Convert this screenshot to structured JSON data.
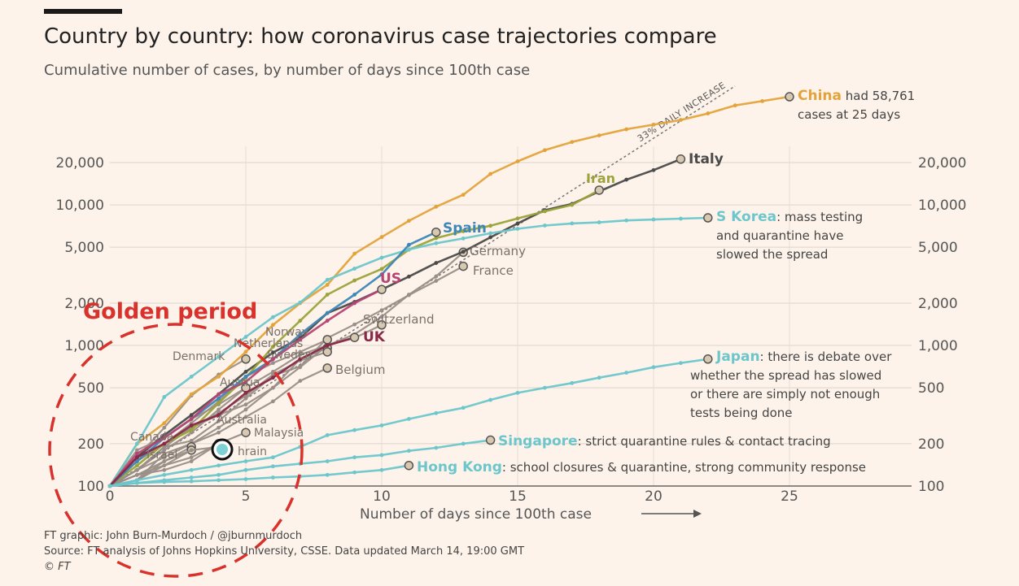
{
  "header": {
    "title": "Country by country: how coronavirus case trajectories compare",
    "subtitle": "Cumulative number of cases, by number of days since 100th case"
  },
  "footer": {
    "credit": "FT graphic: John Burn-Murdoch / @jburnmurdoch",
    "source": "Source: FT analysis of Johns Hopkins University, CSSE. Data updated March 14, 19:00 GMT",
    "copyright": "© FT"
  },
  "overlay": {
    "label": "Golden period",
    "color": "#d9312b"
  },
  "colors": {
    "china": "#e3a33b",
    "italy": "#4a4a4a",
    "iran": "#9ba33a",
    "skorea": "#6cc6cc",
    "spain": "#3d87b8",
    "us": "#b74573",
    "uk": "#8a2848",
    "grey": "#9a8f88",
    "japan": "#6cc6cc",
    "singapore": "#6cc6cc",
    "hongkong": "#6cc6cc"
  },
  "chart_data": {
    "type": "line",
    "title": "Country by country: how coronavirus case trajectories compare",
    "subtitle": "Cumulative number of cases, by number of days since 100th case",
    "xlabel": "Number of days since 100th case",
    "xlim": [
      0,
      30
    ],
    "ylim": [
      100,
      60000
    ],
    "yscale": "log",
    "xticks": [
      0,
      5,
      10,
      15,
      20,
      25
    ],
    "yticks": [
      100,
      200,
      500,
      1000,
      2000,
      5000,
      10000,
      20000
    ],
    "ytick_labels": [
      "100",
      "200",
      "500",
      "1,000",
      "2,000",
      "5,000",
      "10,000",
      "20,000"
    ],
    "grid": true,
    "reference_line": {
      "label": "33% DAILY INCREASE",
      "x": [
        0,
        23
      ],
      "y": [
        100,
        70000
      ]
    },
    "series": [
      {
        "name": "China",
        "label": "China",
        "note": "had 58,761",
        "note2": "cases at 25 days",
        "color_key": "china",
        "x": [
          0,
          1,
          2,
          3,
          4,
          5,
          6,
          7,
          8,
          9,
          10,
          11,
          12,
          13,
          14,
          15,
          16,
          17,
          18,
          19,
          20,
          21,
          22,
          23,
          24,
          25
        ],
        "y": [
          100,
          200,
          280,
          450,
          600,
          900,
          1400,
          2000,
          2700,
          4500,
          5900,
          7700,
          9700,
          11800,
          16600,
          20400,
          24500,
          28000,
          31200,
          34500,
          37200,
          40200,
          44700,
          51000,
          54700,
          58761
        ]
      },
      {
        "name": "Italy",
        "label": "Italy",
        "color_key": "italy",
        "x": [
          0,
          1,
          2,
          3,
          4,
          5,
          6,
          7,
          8,
          9,
          10,
          11,
          12,
          13,
          14,
          15,
          16,
          17,
          18,
          19,
          20,
          21
        ],
        "y": [
          100,
          160,
          230,
          320,
          450,
          650,
          890,
          1130,
          1700,
          2040,
          2500,
          3090,
          3860,
          4640,
          5880,
          7380,
          9170,
          10150,
          12460,
          15110,
          17660,
          21157
        ]
      },
      {
        "name": "Iran",
        "label": "Iran",
        "color_key": "iran",
        "x": [
          0,
          1,
          2,
          3,
          4,
          5,
          6,
          7,
          8,
          9,
          10,
          11,
          12,
          13,
          14,
          15,
          16,
          17,
          18
        ],
        "y": [
          100,
          140,
          200,
          250,
          390,
          590,
          980,
          1500,
          2300,
          2900,
          3500,
          4800,
          5800,
          6500,
          7100,
          8000,
          9000,
          10000,
          12729
        ]
      },
      {
        "name": "S Korea",
        "label": "S Korea",
        "note": ": mass testing",
        "note2": "and quarantine have",
        "note3": "slowed the spread",
        "color_key": "skorea",
        "x": [
          0,
          1,
          2,
          3,
          4,
          5,
          6,
          7,
          8,
          9,
          10,
          11,
          12,
          13,
          14,
          15,
          16,
          17,
          18,
          19,
          20,
          21,
          22
        ],
        "y": [
          100,
          200,
          430,
          600,
          830,
          1150,
          1590,
          2020,
          2930,
          3520,
          4210,
          4810,
          5330,
          5770,
          6280,
          6760,
          7130,
          7380,
          7510,
          7750,
          7870,
          7980,
          8086
        ]
      },
      {
        "name": "Spain",
        "label": "Spain",
        "color_key": "spain",
        "x": [
          0,
          1,
          2,
          3,
          4,
          5,
          6,
          7,
          8,
          9,
          10,
          11,
          12
        ],
        "y": [
          100,
          150,
          220,
          300,
          420,
          600,
          800,
          1200,
          1700,
          2300,
          3200,
          5200,
          6391
        ]
      },
      {
        "name": "US",
        "label": "US",
        "color_key": "us",
        "x": [
          0,
          1,
          2,
          3,
          4,
          5,
          6,
          7,
          8,
          9,
          10
        ],
        "y": [
          100,
          170,
          220,
          300,
          450,
          550,
          800,
          1100,
          1500,
          2000,
          2500
        ]
      },
      {
        "name": "Germany",
        "label": "Germany",
        "color_key": "grey",
        "x": [
          0,
          1,
          2,
          3,
          4,
          5,
          6,
          7,
          8,
          9,
          10,
          11,
          12,
          13
        ],
        "y": [
          100,
          130,
          160,
          200,
          260,
          350,
          500,
          700,
          1000,
          1200,
          1600,
          2300,
          3100,
          4600
        ]
      },
      {
        "name": "France",
        "label": "France",
        "color_key": "grey",
        "x": [
          0,
          1,
          2,
          3,
          4,
          5,
          6,
          7,
          8,
          9,
          10,
          11,
          12,
          13
        ],
        "y": [
          100,
          130,
          190,
          210,
          290,
          420,
          610,
          710,
          1130,
          1410,
          1780,
          2280,
          2880,
          3660
        ]
      },
      {
        "name": "Switzerland",
        "label": "Switzerland",
        "color_key": "grey",
        "x": [
          0,
          1,
          2,
          3,
          4,
          5,
          6,
          7,
          8,
          9,
          10
        ],
        "y": [
          100,
          180,
          220,
          300,
          380,
          500,
          650,
          860,
          1000,
          1130,
          1400
        ]
      },
      {
        "name": "UK",
        "label": "UK",
        "color_key": "uk",
        "x": [
          0,
          1,
          2,
          3,
          4,
          5,
          6,
          7,
          8,
          9
        ],
        "y": [
          100,
          160,
          200,
          270,
          320,
          460,
          590,
          800,
          1000,
          1140
        ]
      },
      {
        "name": "Norway",
        "label": "Norway",
        "color_key": "grey",
        "x": [
          0,
          1,
          2,
          3,
          4,
          5,
          6,
          7,
          8
        ],
        "y": [
          100,
          150,
          200,
          280,
          400,
          600,
          750,
          900,
          1100
        ]
      },
      {
        "name": "Netherlands",
        "label": "Netherlands",
        "color_key": "grey",
        "x": [
          0,
          1,
          2,
          3,
          4,
          5,
          6,
          7,
          8
        ],
        "y": [
          100,
          130,
          190,
          260,
          320,
          380,
          500,
          800,
          960
        ]
      },
      {
        "name": "Sweden",
        "label": "Sweden",
        "color_key": "grey",
        "x": [
          0,
          1,
          2,
          3,
          4,
          5,
          6,
          7,
          8
        ],
        "y": [
          100,
          150,
          200,
          260,
          330,
          440,
          620,
          780,
          900
        ]
      },
      {
        "name": "Belgium",
        "label": "Belgium",
        "color_key": "grey",
        "x": [
          0,
          1,
          2,
          3,
          4,
          5,
          6,
          7,
          8
        ],
        "y": [
          100,
          110,
          170,
          200,
          240,
          310,
          400,
          560,
          690
        ]
      },
      {
        "name": "Denmark",
        "label": "Denmark",
        "color_key": "grey",
        "x": [
          0,
          1,
          2,
          3,
          4,
          5
        ],
        "y": [
          100,
          160,
          260,
          440,
          620,
          800
        ]
      },
      {
        "name": "Austria",
        "label": "Austria",
        "color_key": "grey",
        "x": [
          0,
          1,
          2,
          3,
          4,
          5
        ],
        "y": [
          100,
          130,
          180,
          240,
          350,
          500
        ]
      },
      {
        "name": "Australia",
        "label": "Australia",
        "color_key": "grey",
        "x": [
          0,
          1,
          2,
          3,
          4
        ],
        "y": [
          100,
          120,
          140,
          160,
          200
        ]
      },
      {
        "name": "Malaysia",
        "label": "Malaysia",
        "color_key": "grey",
        "x": [
          0,
          1,
          2,
          3,
          4,
          5
        ],
        "y": [
          100,
          120,
          130,
          150,
          200,
          240
        ]
      },
      {
        "name": "Canada",
        "label": "Canada",
        "color_key": "grey",
        "x": [
          0,
          1,
          2,
          3
        ],
        "y": [
          100,
          120,
          150,
          190
        ]
      },
      {
        "name": "Israel",
        "label": "Israel",
        "color_key": "grey",
        "x": [
          0,
          1,
          2,
          3
        ],
        "y": [
          100,
          110,
          140,
          180
        ]
      },
      {
        "name": "Bahrain",
        "label": "hrain",
        "color_key": "grey",
        "x": [
          0,
          1,
          2,
          3,
          4
        ],
        "y": [
          100,
          110,
          150,
          180,
          190
        ]
      },
      {
        "name": "Japan",
        "label": "Japan",
        "note": ": there is debate over",
        "note2": "whether the spread has slowed",
        "note3": "or there are simply not enough",
        "note4": "tests being done",
        "color_key": "japan",
        "x": [
          0,
          1,
          2,
          3,
          4,
          5,
          6,
          7,
          8,
          9,
          10,
          11,
          12,
          13,
          14,
          15,
          16,
          17,
          18,
          19,
          20,
          21,
          22
        ],
        "y": [
          100,
          110,
          120,
          130,
          140,
          150,
          160,
          190,
          230,
          250,
          270,
          300,
          330,
          360,
          410,
          460,
          500,
          540,
          590,
          640,
          700,
          750,
          800
        ]
      },
      {
        "name": "Singapore",
        "label": "Singapore",
        "note": ": strict quarantine rules & contact tracing",
        "color_key": "singapore",
        "x": [
          0,
          1,
          2,
          3,
          4,
          5,
          6,
          7,
          8,
          9,
          10,
          11,
          12,
          13,
          14
        ],
        "y": [
          100,
          105,
          110,
          115,
          120,
          130,
          138,
          144,
          150,
          160,
          166,
          178,
          187,
          200,
          212
        ]
      },
      {
        "name": "Hong Kong",
        "label": "Hong Kong",
        "note": ": school closures & quarantine, strong community response",
        "color_key": "hongkong",
        "x": [
          0,
          1,
          2,
          3,
          4,
          5,
          6,
          7,
          8,
          9,
          10,
          11
        ],
        "y": [
          100,
          105,
          107,
          108,
          110,
          112,
          115,
          117,
          120,
          125,
          130,
          140
        ]
      }
    ]
  }
}
